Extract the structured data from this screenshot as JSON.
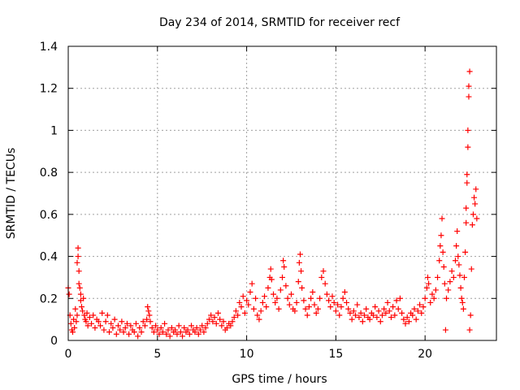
{
  "chart_data": {
    "type": "scatter",
    "title": "Day 234 of 2014, SRMTID for receiver recf",
    "xlabel": "GPS time / hours",
    "ylabel": "SRMTID / TECUs",
    "xlim": [
      0,
      24
    ],
    "ylim": [
      0,
      1.4
    ],
    "xticks": [
      "0",
      "5",
      "10",
      "15",
      "20"
    ],
    "yticks": [
      "0",
      "0.2",
      "0.4",
      "0.6",
      "0.8",
      "1",
      "1.2",
      "1.4"
    ],
    "grid": true,
    "marker": "+",
    "color": "#ff0000",
    "series": [
      {
        "name": "SRMTID",
        "points": [
          [
            0.0,
            0.25
          ],
          [
            0.05,
            0.22
          ],
          [
            0.1,
            0.12
          ],
          [
            0.15,
            0.08
          ],
          [
            0.2,
            0.05
          ],
          [
            0.25,
            0.04
          ],
          [
            0.3,
            0.1
          ],
          [
            0.35,
            0.06
          ],
          [
            0.4,
            0.15
          ],
          [
            0.45,
            0.09
          ],
          [
            0.5,
            0.12
          ],
          [
            0.5,
            0.37
          ],
          [
            0.55,
            0.44
          ],
          [
            0.55,
            0.4
          ],
          [
            0.6,
            0.33
          ],
          [
            0.6,
            0.27
          ],
          [
            0.65,
            0.25
          ],
          [
            0.7,
            0.22
          ],
          [
            0.7,
            0.19
          ],
          [
            0.75,
            0.16
          ],
          [
            0.8,
            0.14
          ],
          [
            0.85,
            0.2
          ],
          [
            0.9,
            0.12
          ],
          [
            0.95,
            0.1
          ],
          [
            1.0,
            0.09
          ],
          [
            1.05,
            0.13
          ],
          [
            1.1,
            0.07
          ],
          [
            1.2,
            0.11
          ],
          [
            1.3,
            0.08
          ],
          [
            1.4,
            0.12
          ],
          [
            1.5,
            0.06
          ],
          [
            1.6,
            0.1
          ],
          [
            1.7,
            0.09
          ],
          [
            1.8,
            0.07
          ],
          [
            1.9,
            0.13
          ],
          [
            2.0,
            0.05
          ],
          [
            2.1,
            0.09
          ],
          [
            2.2,
            0.12
          ],
          [
            2.3,
            0.04
          ],
          [
            2.4,
            0.08
          ],
          [
            2.5,
            0.06
          ],
          [
            2.6,
            0.1
          ],
          [
            2.7,
            0.03
          ],
          [
            2.8,
            0.07
          ],
          [
            2.9,
            0.05
          ],
          [
            3.0,
            0.09
          ],
          [
            3.1,
            0.04
          ],
          [
            3.2,
            0.06
          ],
          [
            3.3,
            0.08
          ],
          [
            3.4,
            0.03
          ],
          [
            3.5,
            0.07
          ],
          [
            3.6,
            0.05
          ],
          [
            3.7,
            0.04
          ],
          [
            3.8,
            0.08
          ],
          [
            3.9,
            0.02
          ],
          [
            4.0,
            0.06
          ],
          [
            4.1,
            0.04
          ],
          [
            4.2,
            0.09
          ],
          [
            4.3,
            0.07
          ],
          [
            4.4,
            0.1
          ],
          [
            4.45,
            0.16
          ],
          [
            4.5,
            0.14
          ],
          [
            4.55,
            0.12
          ],
          [
            4.6,
            0.09
          ],
          [
            4.7,
            0.06
          ],
          [
            4.8,
            0.04
          ],
          [
            4.9,
            0.07
          ],
          [
            5.0,
            0.05
          ],
          [
            5.1,
            0.03
          ],
          [
            5.2,
            0.06
          ],
          [
            5.3,
            0.04
          ],
          [
            5.4,
            0.08
          ],
          [
            5.5,
            0.03
          ],
          [
            5.6,
            0.05
          ],
          [
            5.7,
            0.02
          ],
          [
            5.8,
            0.06
          ],
          [
            5.9,
            0.04
          ],
          [
            6.0,
            0.05
          ],
          [
            6.1,
            0.03
          ],
          [
            6.2,
            0.07
          ],
          [
            6.3,
            0.04
          ],
          [
            6.4,
            0.02
          ],
          [
            6.5,
            0.06
          ],
          [
            6.6,
            0.04
          ],
          [
            6.7,
            0.05
          ],
          [
            6.8,
            0.03
          ],
          [
            6.9,
            0.07
          ],
          [
            7.0,
            0.05
          ],
          [
            7.1,
            0.04
          ],
          [
            7.2,
            0.06
          ],
          [
            7.3,
            0.03
          ],
          [
            7.4,
            0.05
          ],
          [
            7.5,
            0.07
          ],
          [
            7.6,
            0.04
          ],
          [
            7.7,
            0.06
          ],
          [
            7.8,
            0.08
          ],
          [
            7.9,
            0.1
          ],
          [
            8.0,
            0.12
          ],
          [
            8.1,
            0.09
          ],
          [
            8.2,
            0.11
          ],
          [
            8.3,
            0.08
          ],
          [
            8.4,
            0.13
          ],
          [
            8.5,
            0.1
          ],
          [
            8.6,
            0.07
          ],
          [
            8.7,
            0.09
          ],
          [
            8.8,
            0.05
          ],
          [
            8.9,
            0.06
          ],
          [
            9.0,
            0.08
          ],
          [
            9.1,
            0.07
          ],
          [
            9.2,
            0.09
          ],
          [
            9.3,
            0.11
          ],
          [
            9.4,
            0.14
          ],
          [
            9.5,
            0.12
          ],
          [
            9.6,
            0.18
          ],
          [
            9.7,
            0.16
          ],
          [
            9.8,
            0.21
          ],
          [
            9.9,
            0.13
          ],
          [
            10.0,
            0.19
          ],
          [
            10.1,
            0.17
          ],
          [
            10.2,
            0.23
          ],
          [
            10.3,
            0.27
          ],
          [
            10.4,
            0.15
          ],
          [
            10.5,
            0.2
          ],
          [
            10.6,
            0.12
          ],
          [
            10.7,
            0.1
          ],
          [
            10.8,
            0.14
          ],
          [
            10.9,
            0.18
          ],
          [
            11.0,
            0.21
          ],
          [
            11.1,
            0.16
          ],
          [
            11.2,
            0.25
          ],
          [
            11.3,
            0.3
          ],
          [
            11.35,
            0.34
          ],
          [
            11.4,
            0.29
          ],
          [
            11.5,
            0.22
          ],
          [
            11.6,
            0.18
          ],
          [
            11.7,
            0.2
          ],
          [
            11.8,
            0.15
          ],
          [
            11.9,
            0.24
          ],
          [
            12.0,
            0.3
          ],
          [
            12.05,
            0.38
          ],
          [
            12.1,
            0.35
          ],
          [
            12.2,
            0.26
          ],
          [
            12.3,
            0.2
          ],
          [
            12.4,
            0.17
          ],
          [
            12.5,
            0.22
          ],
          [
            12.6,
            0.15
          ],
          [
            12.7,
            0.14
          ],
          [
            12.8,
            0.18
          ],
          [
            12.9,
            0.28
          ],
          [
            12.95,
            0.37
          ],
          [
            13.0,
            0.41
          ],
          [
            13.05,
            0.33
          ],
          [
            13.1,
            0.25
          ],
          [
            13.2,
            0.19
          ],
          [
            13.3,
            0.15
          ],
          [
            13.4,
            0.12
          ],
          [
            13.5,
            0.16
          ],
          [
            13.6,
            0.2
          ],
          [
            13.7,
            0.23
          ],
          [
            13.8,
            0.17
          ],
          [
            13.9,
            0.13
          ],
          [
            14.0,
            0.15
          ],
          [
            14.1,
            0.2
          ],
          [
            14.2,
            0.3
          ],
          [
            14.3,
            0.33
          ],
          [
            14.4,
            0.27
          ],
          [
            14.5,
            0.22
          ],
          [
            14.6,
            0.19
          ],
          [
            14.7,
            0.16
          ],
          [
            14.8,
            0.21
          ],
          [
            14.9,
            0.18
          ],
          [
            15.0,
            0.14
          ],
          [
            15.1,
            0.17
          ],
          [
            15.2,
            0.12
          ],
          [
            15.3,
            0.16
          ],
          [
            15.4,
            0.2
          ],
          [
            15.5,
            0.23
          ],
          [
            15.6,
            0.18
          ],
          [
            15.7,
            0.15
          ],
          [
            15.8,
            0.13
          ],
          [
            15.9,
            0.1
          ],
          [
            16.0,
            0.14
          ],
          [
            16.1,
            0.12
          ],
          [
            16.2,
            0.17
          ],
          [
            16.3,
            0.11
          ],
          [
            16.4,
            0.13
          ],
          [
            16.5,
            0.09
          ],
          [
            16.6,
            0.12
          ],
          [
            16.7,
            0.15
          ],
          [
            16.8,
            0.11
          ],
          [
            16.9,
            0.1
          ],
          [
            17.0,
            0.13
          ],
          [
            17.1,
            0.12
          ],
          [
            17.2,
            0.16
          ],
          [
            17.3,
            0.11
          ],
          [
            17.4,
            0.14
          ],
          [
            17.5,
            0.09
          ],
          [
            17.6,
            0.12
          ],
          [
            17.7,
            0.15
          ],
          [
            17.8,
            0.13
          ],
          [
            17.9,
            0.18
          ],
          [
            18.0,
            0.14
          ],
          [
            18.1,
            0.11
          ],
          [
            18.2,
            0.16
          ],
          [
            18.3,
            0.12
          ],
          [
            18.4,
            0.19
          ],
          [
            18.5,
            0.15
          ],
          [
            18.6,
            0.2
          ],
          [
            18.7,
            0.13
          ],
          [
            18.8,
            0.1
          ],
          [
            18.9,
            0.08
          ],
          [
            19.0,
            0.11
          ],
          [
            19.1,
            0.09
          ],
          [
            19.2,
            0.13
          ],
          [
            19.3,
            0.12
          ],
          [
            19.4,
            0.15
          ],
          [
            19.5,
            0.1
          ],
          [
            19.6,
            0.14
          ],
          [
            19.7,
            0.17
          ],
          [
            19.8,
            0.13
          ],
          [
            19.9,
            0.16
          ],
          [
            20.0,
            0.2
          ],
          [
            20.1,
            0.25
          ],
          [
            20.15,
            0.3
          ],
          [
            20.2,
            0.27
          ],
          [
            20.3,
            0.18
          ],
          [
            20.4,
            0.22
          ],
          [
            20.5,
            0.2
          ],
          [
            20.6,
            0.24
          ],
          [
            20.7,
            0.3
          ],
          [
            20.8,
            0.38
          ],
          [
            20.85,
            0.45
          ],
          [
            20.9,
            0.5
          ],
          [
            20.95,
            0.58
          ],
          [
            21.0,
            0.42
          ],
          [
            21.05,
            0.35
          ],
          [
            21.1,
            0.27
          ],
          [
            21.15,
            0.05
          ],
          [
            21.2,
            0.2
          ],
          [
            21.3,
            0.24
          ],
          [
            21.4,
            0.28
          ],
          [
            21.5,
            0.33
          ],
          [
            21.6,
            0.3
          ],
          [
            21.7,
            0.38
          ],
          [
            21.75,
            0.45
          ],
          [
            21.8,
            0.52
          ],
          [
            21.85,
            0.4
          ],
          [
            21.9,
            0.36
          ],
          [
            21.95,
            0.31
          ],
          [
            22.0,
            0.25
          ],
          [
            22.05,
            0.2
          ],
          [
            22.1,
            0.18
          ],
          [
            22.15,
            0.15
          ],
          [
            22.2,
            0.3
          ],
          [
            22.25,
            0.42
          ],
          [
            22.3,
            0.56
          ],
          [
            22.3,
            0.63
          ],
          [
            22.35,
            0.75
          ],
          [
            22.35,
            0.79
          ],
          [
            22.4,
            0.92
          ],
          [
            22.4,
            1.0
          ],
          [
            22.45,
            1.16
          ],
          [
            22.45,
            1.21
          ],
          [
            22.5,
            1.28
          ],
          [
            22.5,
            0.05
          ],
          [
            22.55,
            0.12
          ],
          [
            22.6,
            0.34
          ],
          [
            22.65,
            0.55
          ],
          [
            22.7,
            0.6
          ],
          [
            22.75,
            0.68
          ],
          [
            22.8,
            0.65
          ],
          [
            22.85,
            0.72
          ],
          [
            22.9,
            0.58
          ]
        ]
      }
    ]
  }
}
